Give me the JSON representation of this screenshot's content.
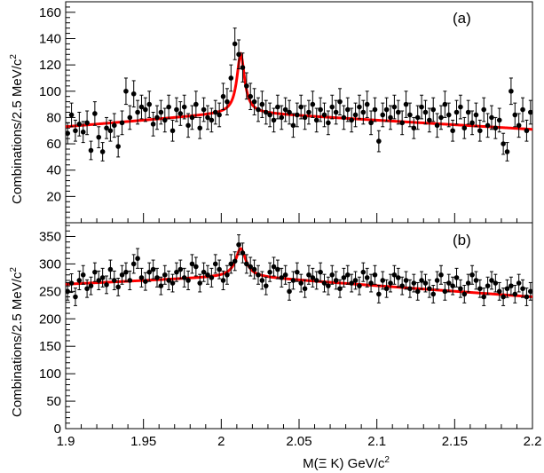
{
  "chart_data": [
    {
      "id": "a",
      "type": "scatter",
      "label": "(a)",
      "ylabel": "Combinations/2.5 MeV/c",
      "ylabel_sup": "2",
      "xlabel": "",
      "xlim": [
        1.9,
        2.2
      ],
      "ylim": [
        0,
        168
      ],
      "yticks": [
        20,
        40,
        60,
        80,
        100,
        120,
        140,
        160
      ],
      "xticks": [],
      "grid": false,
      "fit": {
        "baseline_start": 73,
        "baseline_peak": 84,
        "baseline_end": 71,
        "peak_x": 2.0125,
        "peak_height": 44,
        "peak_halfwidth": 0.003
      },
      "series": [
        {
          "x": [
            1.90125,
            1.90375,
            1.90625,
            1.90875,
            1.91125,
            1.91375,
            1.91625,
            1.91875,
            1.92125,
            1.92375,
            1.92625,
            1.92875,
            1.93125,
            1.93375,
            1.93625,
            1.93875,
            1.94125,
            1.94375,
            1.94625,
            1.94875,
            1.95125,
            1.95375,
            1.95625,
            1.95875,
            1.96125,
            1.96375,
            1.96625,
            1.96875,
            1.97125,
            1.97375,
            1.97625,
            1.97875,
            1.98125,
            1.98375,
            1.98625,
            1.98875,
            1.99125,
            1.99375,
            1.99625,
            1.99875,
            2.00125,
            2.00375,
            2.00625,
            2.00875,
            2.01125,
            2.01375,
            2.01625,
            2.01875,
            2.02125,
            2.02375,
            2.02625,
            2.02875,
            2.03125,
            2.03375,
            2.03625,
            2.03875,
            2.04125,
            2.04375,
            2.04625,
            2.04875,
            2.05125,
            2.05375,
            2.05625,
            2.05875,
            2.06125,
            2.06375,
            2.06625,
            2.06875,
            2.07125,
            2.07375,
            2.07625,
            2.07875,
            2.08125,
            2.08375,
            2.08625,
            2.08875,
            2.09125,
            2.09375,
            2.09625,
            2.09875,
            2.10125,
            2.10375,
            2.10625,
            2.10875,
            2.11125,
            2.11375,
            2.11625,
            2.11875,
            2.12125,
            2.12375,
            2.12625,
            2.12875,
            2.13125,
            2.13375,
            2.13625,
            2.13875,
            2.14125,
            2.14375,
            2.14625,
            2.14875,
            2.15125,
            2.15375,
            2.15625,
            2.15875,
            2.16125,
            2.16375,
            2.16625,
            2.16875,
            2.17125,
            2.17375,
            2.17625,
            2.17875,
            2.18125,
            2.18375,
            2.18625,
            2.18875,
            2.19125,
            2.19375,
            2.19625,
            2.19875
          ],
          "y": [
            68,
            82,
            70,
            75,
            69,
            76,
            55,
            83,
            65,
            54,
            72,
            70,
            74,
            58,
            76,
            100,
            80,
            98,
            84,
            88,
            86,
            90,
            75,
            80,
            84,
            78,
            88,
            70,
            86,
            83,
            88,
            74,
            80,
            90,
            72,
            86,
            80,
            78,
            84,
            82,
            96,
            92,
            110,
            136,
            128,
            118,
            104,
            96,
            92,
            86,
            90,
            84,
            82,
            78,
            88,
            80,
            86,
            84,
            74,
            82,
            88,
            80,
            84,
            90,
            78,
            86,
            82,
            76,
            88,
            84,
            92,
            80,
            86,
            78,
            82,
            88,
            84,
            90,
            76,
            86,
            62,
            82,
            86,
            80,
            88,
            84,
            76,
            90,
            82,
            72,
            80,
            88,
            84,
            78,
            86,
            74,
            80,
            90,
            82,
            70,
            84,
            88,
            72,
            84,
            76,
            82,
            70,
            86,
            74,
            80,
            72,
            78,
            60,
            54,
            100,
            82,
            74,
            86,
            70,
            84
          ],
          "yerr": [
            8,
            9,
            8,
            9,
            8,
            9,
            7,
            9,
            8,
            7,
            8,
            8,
            9,
            8,
            9,
            10,
            9,
            10,
            9,
            9,
            9,
            10,
            9,
            9,
            9,
            9,
            9,
            8,
            9,
            9,
            9,
            9,
            9,
            10,
            8,
            9,
            9,
            9,
            9,
            9,
            10,
            10,
            10,
            12,
            11,
            11,
            10,
            10,
            10,
            9,
            10,
            9,
            9,
            9,
            9,
            9,
            9,
            9,
            9,
            9,
            9,
            9,
            9,
            10,
            9,
            9,
            9,
            9,
            9,
            9,
            10,
            9,
            9,
            9,
            9,
            9,
            9,
            10,
            9,
            9,
            8,
            9,
            9,
            9,
            9,
            9,
            9,
            10,
            9,
            8,
            9,
            9,
            9,
            9,
            9,
            9,
            9,
            10,
            9,
            8,
            9,
            9,
            8,
            9,
            9,
            9,
            8,
            9,
            9,
            9,
            8,
            9,
            8,
            7,
            10,
            9,
            9,
            9,
            8,
            9
          ]
        }
      ]
    },
    {
      "id": "b",
      "type": "scatter",
      "label": "(b)",
      "ylabel": "Combinations/2.5 MeV/c",
      "ylabel_sup": "2",
      "xlabel": "M(Ξ K) GeV/c",
      "xlabel_sup": "2",
      "xlim": [
        1.9,
        2.2
      ],
      "ylim": [
        0,
        375
      ],
      "yticks": [
        0,
        50,
        100,
        150,
        200,
        250,
        300,
        350
      ],
      "xticks": [
        1.9,
        1.95,
        2,
        2.05,
        2.1,
        2.15,
        2.2
      ],
      "xticklabels": [
        "1.9",
        "1.95",
        "2",
        "2.05",
        "2.1",
        "2.15",
        "2.2"
      ],
      "grid": false,
      "fit": {
        "baseline_start": 263,
        "baseline_peak": 278,
        "baseline_end": 240,
        "peak_x": 2.0125,
        "peak_height": 50,
        "peak_halfwidth": 0.004
      },
      "series": [
        {
          "x": [
            1.90125,
            1.90375,
            1.90625,
            1.90875,
            1.91125,
            1.91375,
            1.91625,
            1.91875,
            1.92125,
            1.92375,
            1.92625,
            1.92875,
            1.93125,
            1.93375,
            1.93625,
            1.93875,
            1.94125,
            1.94375,
            1.94625,
            1.94875,
            1.95125,
            1.95375,
            1.95625,
            1.95875,
            1.96125,
            1.96375,
            1.96625,
            1.96875,
            1.97125,
            1.97375,
            1.97625,
            1.97875,
            1.98125,
            1.98375,
            1.98625,
            1.98875,
            1.99125,
            1.99375,
            1.99625,
            1.99875,
            2.00125,
            2.00375,
            2.00625,
            2.00875,
            2.01125,
            2.01375,
            2.01625,
            2.01875,
            2.02125,
            2.02375,
            2.02625,
            2.02875,
            2.03125,
            2.03375,
            2.03625,
            2.03875,
            2.04125,
            2.04375,
            2.04625,
            2.04875,
            2.05125,
            2.05375,
            2.05625,
            2.05875,
            2.06125,
            2.06375,
            2.06625,
            2.06875,
            2.07125,
            2.07375,
            2.07625,
            2.07875,
            2.08125,
            2.08375,
            2.08625,
            2.08875,
            2.09125,
            2.09375,
            2.09625,
            2.09875,
            2.10125,
            2.10375,
            2.10625,
            2.10875,
            2.11125,
            2.11375,
            2.11625,
            2.11875,
            2.12125,
            2.12375,
            2.12625,
            2.12875,
            2.13125,
            2.13375,
            2.13625,
            2.13875,
            2.14125,
            2.14375,
            2.14625,
            2.14875,
            2.15125,
            2.15375,
            2.15625,
            2.15875,
            2.16125,
            2.16375,
            2.16625,
            2.16875,
            2.17125,
            2.17375,
            2.17625,
            2.17875,
            2.18125,
            2.18375,
            2.18625,
            2.18875,
            2.19125,
            2.19375,
            2.19625,
            2.19875
          ],
          "y": [
            250,
            265,
            240,
            270,
            280,
            255,
            260,
            285,
            270,
            275,
            262,
            290,
            270,
            258,
            280,
            285,
            270,
            300,
            310,
            275,
            268,
            285,
            290,
            275,
            260,
            280,
            270,
            265,
            285,
            290,
            275,
            270,
            300,
            295,
            265,
            285,
            280,
            275,
            300,
            290,
            270,
            280,
            300,
            305,
            335,
            320,
            300,
            295,
            290,
            280,
            270,
            260,
            285,
            295,
            290,
            275,
            280,
            250,
            270,
            285,
            265,
            255,
            280,
            275,
            270,
            285,
            265,
            260,
            280,
            270,
            255,
            275,
            280,
            265,
            270,
            260,
            285,
            275,
            265,
            280,
            245,
            270,
            255,
            265,
            280,
            275,
            260,
            270,
            255,
            265,
            250,
            270,
            265,
            255,
            245,
            270,
            280,
            250,
            265,
            260,
            275,
            255,
            245,
            265,
            280,
            270,
            255,
            240,
            260,
            270,
            265,
            250,
            240,
            255,
            260,
            245,
            265,
            255,
            240,
            250
          ],
          "yerr": [
            16,
            17,
            16,
            17,
            17,
            16,
            16,
            17,
            17,
            17,
            16,
            17,
            17,
            16,
            17,
            17,
            17,
            17,
            18,
            17,
            16,
            17,
            17,
            17,
            16,
            17,
            17,
            16,
            17,
            17,
            17,
            17,
            17,
            17,
            16,
            17,
            17,
            17,
            17,
            17,
            17,
            17,
            17,
            17,
            18,
            18,
            17,
            17,
            17,
            17,
            16,
            16,
            17,
            17,
            17,
            17,
            17,
            16,
            16,
            17,
            16,
            16,
            17,
            17,
            16,
            17,
            16,
            16,
            17,
            16,
            16,
            17,
            17,
            16,
            16,
            16,
            17,
            17,
            16,
            17,
            16,
            16,
            16,
            16,
            17,
            17,
            16,
            16,
            16,
            16,
            16,
            16,
            16,
            16,
            16,
            16,
            17,
            16,
            16,
            16,
            17,
            16,
            16,
            16,
            17,
            16,
            16,
            16,
            16,
            16,
            16,
            16,
            16,
            16,
            16,
            16,
            16,
            16,
            16,
            16
          ]
        }
      ]
    }
  ]
}
